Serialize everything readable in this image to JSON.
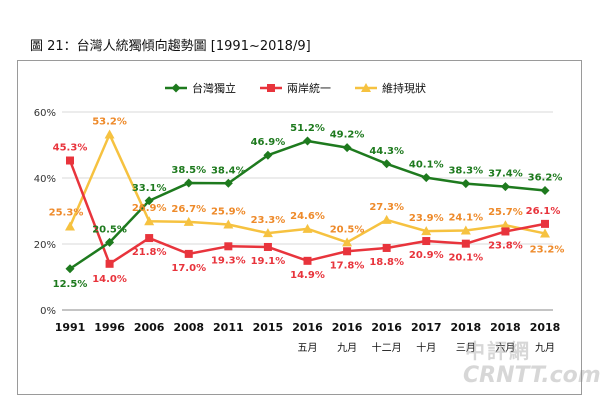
{
  "title": "圖 21：台灣人統獨傾向趨勢圖  [1991~2018/9]",
  "watermark": {
    "cn": "中評網",
    "latin": "CRNTT.com"
  },
  "chart_data": {
    "type": "line",
    "title": "圖 21：台灣人統獨傾向趨勢圖  [1991~2018/9]",
    "xlabel": "",
    "ylabel": "",
    "categories": [
      {
        "year": "1991",
        "month": ""
      },
      {
        "year": "1996",
        "month": ""
      },
      {
        "year": "2006",
        "month": ""
      },
      {
        "year": "2008",
        "month": ""
      },
      {
        "year": "2011",
        "month": ""
      },
      {
        "year": "2015",
        "month": ""
      },
      {
        "year": "2016",
        "month": "五月"
      },
      {
        "year": "2016",
        "month": "九月"
      },
      {
        "year": "2016",
        "month": "十二月"
      },
      {
        "year": "2017",
        "month": "十月"
      },
      {
        "year": "2018",
        "month": "三月"
      },
      {
        "year": "2018",
        "month": "六月"
      },
      {
        "year": "2018",
        "month": "九月"
      }
    ],
    "ylim": [
      0,
      60
    ],
    "yticks": [
      "0%",
      "20%",
      "40%",
      "60%"
    ],
    "grid": true,
    "legend_position": "top",
    "series": [
      {
        "name": "台灣獨立",
        "color": "#1e7a1e",
        "marker": "diamond",
        "values": [
          12.5,
          20.5,
          33.1,
          38.5,
          38.4,
          46.9,
          51.2,
          49.2,
          44.3,
          40.1,
          38.3,
          37.4,
          36.2
        ],
        "labels": [
          "12.5%",
          "20.5%",
          "33.1%",
          "38.5%",
          "38.4%",
          "46.9%",
          "51.2%",
          "49.2%",
          "44.3%",
          "40.1%",
          "38.3%",
          "37.4%",
          "36.2%"
        ]
      },
      {
        "name": "兩岸統一",
        "color": "#e8343c",
        "marker": "square",
        "values": [
          45.3,
          14.0,
          21.8,
          17.0,
          19.3,
          19.1,
          14.9,
          17.8,
          18.8,
          20.9,
          20.1,
          23.8,
          26.1
        ],
        "labels": [
          "45.3%",
          "14.0%",
          "21.8%",
          "17.0%",
          "19.3%",
          "19.1%",
          "14.9%",
          "17.8%",
          "18.8%",
          "20.9%",
          "20.1%",
          "23.8%",
          "26.1%"
        ]
      },
      {
        "name": "維持現狀",
        "color": "#f6c240",
        "marker": "triangle",
        "values": [
          25.3,
          53.2,
          26.9,
          26.7,
          25.9,
          23.3,
          24.6,
          20.5,
          27.3,
          23.9,
          24.1,
          25.7,
          23.2
        ],
        "labels": [
          "25.3%",
          "53.2%",
          "26.9%",
          "26.7%",
          "25.9%",
          "23.3%",
          "24.6%",
          "20.5%",
          "27.3%",
          "23.9%",
          "24.1%",
          "25.7%",
          "23.2%"
        ]
      }
    ],
    "label_colors": {
      "台灣獨立": "#1e7a1e",
      "兩岸統一": "#e8343c",
      "維持現狀": "#ee8a2a"
    }
  }
}
